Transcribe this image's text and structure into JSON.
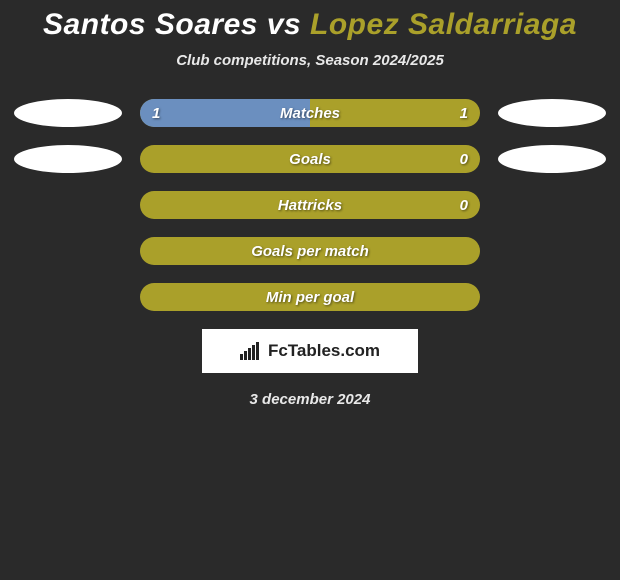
{
  "title": {
    "player1": "Santos Soares",
    "vs": "vs",
    "player2": "Lopez Saldarriaga",
    "player1_color": "#ffffff",
    "player2_color": "#aaa02a"
  },
  "subtitle": "Club competitions, Season 2024/2025",
  "oval_colors": {
    "left1": "#ffffff",
    "right1": "#ffffff",
    "left2": "#ffffff",
    "right2": "#ffffff"
  },
  "bars": [
    {
      "label": "Matches",
      "left_value": "1",
      "right_value": "1",
      "base_color": "#aaa02a",
      "left_fill_color": "#6b8fbf",
      "left_fill_pct": 50,
      "show_left_oval": true,
      "show_right_oval": true,
      "show_left_value": true,
      "show_right_value": true
    },
    {
      "label": "Goals",
      "left_value": "",
      "right_value": "0",
      "base_color": "#aaa02a",
      "left_fill_color": "#6b8fbf",
      "left_fill_pct": 0,
      "show_left_oval": true,
      "show_right_oval": true,
      "show_left_value": false,
      "show_right_value": true
    },
    {
      "label": "Hattricks",
      "left_value": "",
      "right_value": "0",
      "base_color": "#aaa02a",
      "left_fill_color": "#6b8fbf",
      "left_fill_pct": 0,
      "show_left_oval": false,
      "show_right_oval": false,
      "show_left_value": false,
      "show_right_value": true
    },
    {
      "label": "Goals per match",
      "left_value": "",
      "right_value": "",
      "base_color": "#aaa02a",
      "left_fill_color": "#6b8fbf",
      "left_fill_pct": 0,
      "show_left_oval": false,
      "show_right_oval": false,
      "show_left_value": false,
      "show_right_value": false
    },
    {
      "label": "Min per goal",
      "left_value": "",
      "right_value": "",
      "base_color": "#aaa02a",
      "left_fill_color": "#6b8fbf",
      "left_fill_pct": 0,
      "show_left_oval": false,
      "show_right_oval": false,
      "show_left_value": false,
      "show_right_value": false
    }
  ],
  "attribution": "FcTables.com",
  "date": "3 december 2024",
  "background_color": "#2a2a2a"
}
